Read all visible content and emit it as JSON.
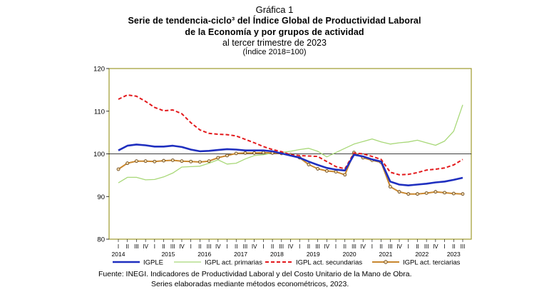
{
  "header": {
    "grafica": "Gráfica 1",
    "title_line1": "Serie de tendencia-ciclo³ del Índice Global de Productividad Laboral",
    "title_line2": "de la Economía y por grupos de actividad",
    "subtitle": "al tercer trimestre de 2023",
    "index_note": "(Índice 2018=100)"
  },
  "source": {
    "line1": "Fuente: INEGI. Indicadores de Productividad Laboral y del Costo Unitario de la Mano de Obra.",
    "line2": "Series elaboradas mediante métodos econométricos, 2023."
  },
  "colors": {
    "plot_border": "#9e9a2c",
    "igple": "#1f2fbf",
    "primarias": "#a8d878",
    "secundarias": "#e3191c",
    "terciarias": "#c8872f",
    "marker_fill": "#f4d8a8",
    "marker_stroke": "#5c3a10"
  },
  "chart_data": {
    "type": "line",
    "ylim": [
      80,
      120
    ],
    "yticks": [
      80,
      90,
      100,
      110,
      120
    ],
    "reference_line": 100,
    "grid": false,
    "legend_position": "bottom",
    "quarter_labels": [
      "I",
      "II",
      "III",
      "IV",
      "I",
      "II",
      "III",
      "IV",
      "I",
      "II",
      "III",
      "IV",
      "I",
      "II",
      "III",
      "IV",
      "I",
      "II",
      "III",
      "IV",
      "I",
      "II",
      "III",
      "IV",
      "I",
      "II",
      "III",
      "IV",
      "I",
      "II",
      "III",
      "IV",
      "I",
      "II",
      "III",
      "IV",
      "I",
      "II",
      "III"
    ],
    "year_labels": [
      {
        "label": "2014",
        "q_index": 0
      },
      {
        "label": "2015",
        "q_index": 5.5
      },
      {
        "label": "2016",
        "q_index": 9.5
      },
      {
        "label": "2017",
        "q_index": 13.5
      },
      {
        "label": "2018",
        "q_index": 17.5
      },
      {
        "label": "2019",
        "q_index": 21.5
      },
      {
        "label": "2020",
        "q_index": 25.5
      },
      {
        "label": "2021",
        "q_index": 29.5
      },
      {
        "label": "2022",
        "q_index": 33.5
      },
      {
        "label": "2023",
        "q_index": 37
      }
    ],
    "series": [
      {
        "name": "IGPLE",
        "key": "igple",
        "style": "thick",
        "values": [
          100.8,
          101.9,
          102.2,
          102.0,
          101.7,
          101.7,
          101.9,
          101.6,
          101.0,
          100.6,
          100.7,
          100.9,
          101.1,
          101.0,
          100.8,
          100.8,
          100.8,
          100.6,
          100.1,
          99.6,
          99.1,
          98.2,
          97.4,
          96.7,
          96.3,
          96.1,
          99.8,
          99.4,
          98.7,
          98.2,
          93.5,
          92.8,
          92.6,
          92.8,
          93.0,
          93.3,
          93.5,
          93.9,
          94.4
        ]
      },
      {
        "name": "IGPL act. primarias",
        "key": "primarias",
        "style": "thin",
        "values": [
          93.2,
          94.5,
          94.5,
          93.9,
          94.0,
          94.6,
          95.5,
          96.9,
          97.0,
          97.1,
          97.8,
          98.6,
          97.6,
          97.8,
          98.8,
          99.6,
          99.8,
          100.2,
          100.3,
          100.6,
          101.0,
          101.3,
          100.6,
          99.3,
          100.3,
          101.3,
          102.3,
          102.9,
          103.5,
          102.8,
          102.3,
          102.6,
          102.8,
          103.2,
          102.6,
          102.0,
          103.0,
          105.3,
          111.5
        ]
      },
      {
        "name": "IGPL act. secundarias",
        "key": "secundarias",
        "style": "dashed",
        "values": [
          112.8,
          113.8,
          113.5,
          112.3,
          110.9,
          110.1,
          110.3,
          109.4,
          107.3,
          105.6,
          104.8,
          104.6,
          104.5,
          104.2,
          103.4,
          102.6,
          101.7,
          101.0,
          100.5,
          99.8,
          99.6,
          99.5,
          99.4,
          98.2,
          97.0,
          96.5,
          100.2,
          100.0,
          99.4,
          98.7,
          95.7,
          95.1,
          95.2,
          95.6,
          96.2,
          96.4,
          96.7,
          97.4,
          98.7
        ]
      },
      {
        "name": "IGPL act. terciarias",
        "key": "terciarias",
        "style": "marker",
        "values": [
          96.4,
          97.8,
          98.3,
          98.3,
          98.2,
          98.4,
          98.5,
          98.3,
          98.2,
          98.1,
          98.3,
          99.1,
          99.6,
          100.1,
          100.2,
          100.2,
          100.3,
          100.2,
          100.1,
          99.8,
          99.1,
          97.5,
          96.5,
          96.0,
          95.8,
          95.1,
          100.3,
          99.1,
          98.5,
          98.0,
          92.3,
          91.1,
          90.6,
          90.6,
          90.8,
          91.1,
          90.9,
          90.7,
          90.6
        ]
      }
    ]
  }
}
